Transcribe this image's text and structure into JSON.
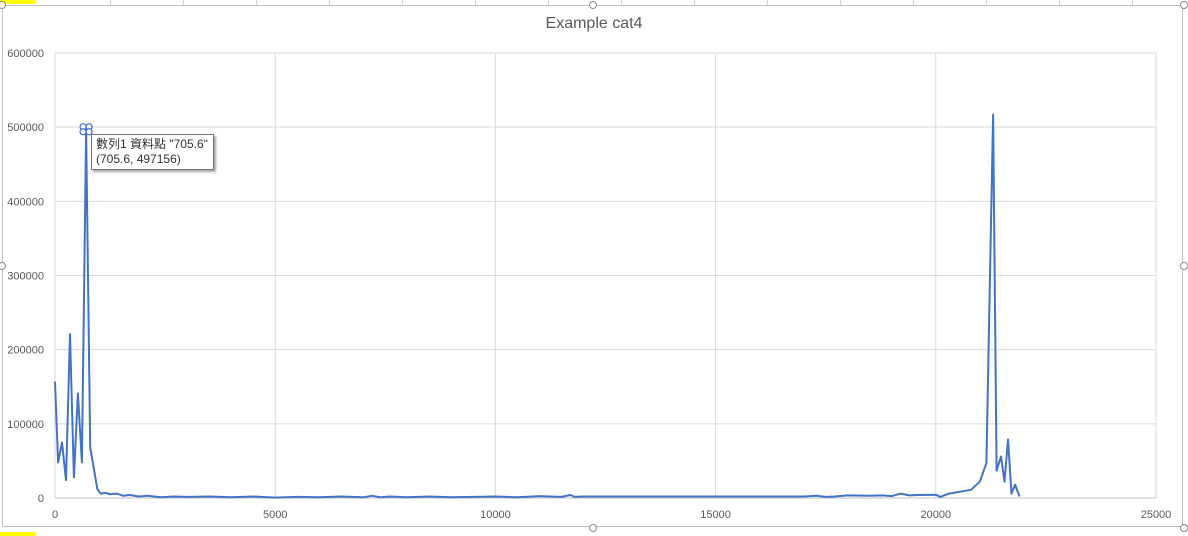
{
  "chart_data": {
    "type": "line",
    "title": "Example cat4",
    "xlim": [
      0,
      25000
    ],
    "ylim": [
      0,
      600000
    ],
    "x_ticks": [
      "0",
      "5000",
      "10000",
      "15000",
      "20000",
      "25000"
    ],
    "y_ticks": [
      "0",
      "100000",
      "200000",
      "300000",
      "400000",
      "500000",
      "600000"
    ],
    "grid": true,
    "legend": "none",
    "series": [
      {
        "color": "#4472c4",
        "x": [
          0,
          70,
          160,
          250,
          340,
          430,
          520,
          610,
          705.6,
          800,
          880,
          960,
          1040,
          1150,
          1250,
          1400,
          1550,
          1700,
          1900,
          2100,
          2400,
          2700,
          3000,
          3500,
          4000,
          4500,
          5000,
          5500,
          6000,
          6500,
          7000,
          7200,
          7400,
          7600,
          8000,
          8500,
          9000,
          9500,
          10000,
          10500,
          11000,
          11500,
          11700,
          11800,
          12000,
          13000,
          14000,
          15000,
          16000,
          17000,
          17300,
          17500,
          17700,
          18000,
          18500,
          18800,
          19000,
          19200,
          19400,
          19600,
          20000,
          20100,
          20300,
          20600,
          20800,
          21000,
          21150,
          21300,
          21380,
          21480,
          21560,
          21640,
          21720,
          21800,
          21900
        ],
        "y": [
          157000,
          48000,
          75000,
          24000,
          221000,
          28000,
          141000,
          48000,
          497156,
          68000,
          40000,
          12000,
          6000,
          7000,
          5000,
          6000,
          3000,
          4000,
          2000,
          3000,
          1000,
          2000,
          1500,
          2000,
          1000,
          2000,
          500,
          1500,
          1000,
          2000,
          1000,
          3000,
          1000,
          2000,
          1000,
          2000,
          1000,
          1500,
          2000,
          1000,
          2500,
          1500,
          4000,
          1500,
          2000,
          2000,
          2000,
          2000,
          2000,
          2000,
          3000,
          1500,
          2000,
          3500,
          3000,
          3500,
          2500,
          6000,
          3500,
          4000,
          4500,
          1500,
          6000,
          9000,
          11000,
          22000,
          47000,
          517000,
          37000,
          56000,
          22000,
          79000,
          6000,
          18000,
          2000
        ]
      }
    ],
    "tooltip": {
      "line1": "數列1 資料點 \"705.6\"",
      "line2": "(705.6, 497156)"
    }
  }
}
